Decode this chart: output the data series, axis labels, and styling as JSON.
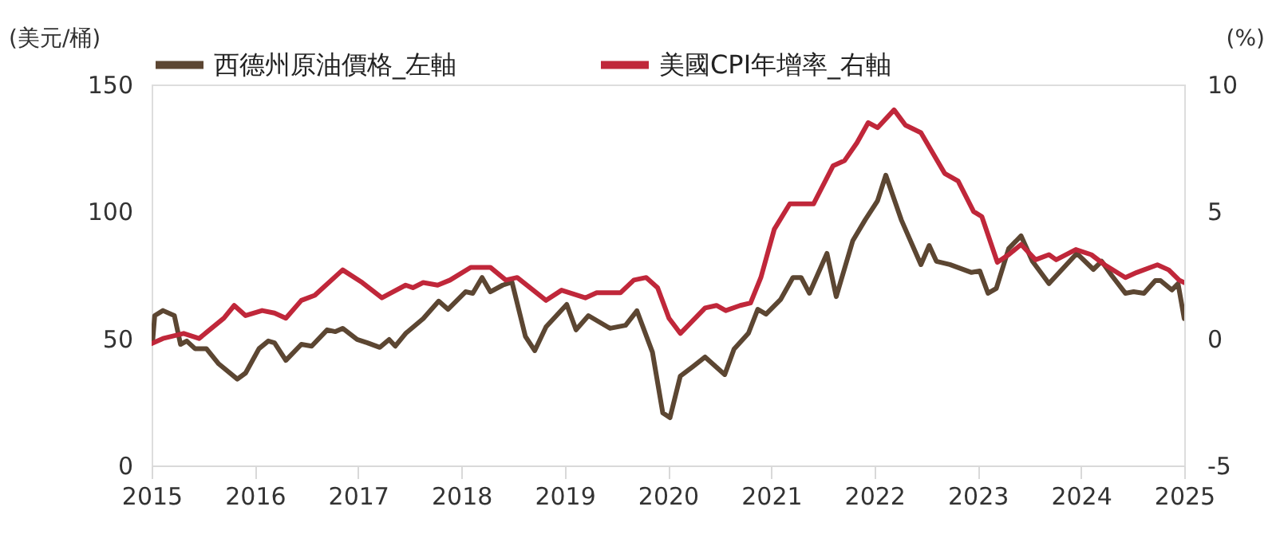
{
  "chart_data": {
    "type": "line",
    "ylabel": "(美元/桶)",
    "y2label": "(%)",
    "xlim": [
      2015,
      2025
    ],
    "xticks": [
      2015,
      2016,
      2017,
      2018,
      2019,
      2020,
      2021,
      2022,
      2023,
      2024,
      2025
    ],
    "ylim": [
      0,
      150
    ],
    "yticks": [
      0,
      50,
      100,
      150
    ],
    "y2lim": [
      -5,
      10
    ],
    "y2ticks": [
      -5,
      0,
      5,
      10
    ],
    "grid": false,
    "legend": "top",
    "marker": "none",
    "line_style": "solid",
    "series": [
      {
        "name": "西德州原油價格_左軸",
        "color": "#5c4632",
        "x": [
          2015.01,
          2015.03,
          2015.11,
          2015.22,
          2015.28,
          2015.34,
          2015.42,
          2015.53,
          2015.65,
          2015.83,
          2015.91,
          2016.04,
          2016.13,
          2016.19,
          2016.3,
          2016.45,
          2016.55,
          2016.7,
          2016.78,
          2016.85,
          2016.99,
          2017.09,
          2017.21,
          2017.3,
          2017.36,
          2017.46,
          2017.63,
          2017.78,
          2017.87,
          2018.04,
          2018.11,
          2018.2,
          2018.28,
          2018.4,
          2018.49,
          2018.62,
          2018.71,
          2018.82,
          2019.02,
          2019.11,
          2019.23,
          2019.44,
          2019.59,
          2019.7,
          2019.85,
          2019.95,
          2020.02,
          2020.12,
          2020.24,
          2020.36,
          2020.55,
          2020.64,
          2020.78,
          2020.87,
          2020.95,
          2021.09,
          2021.21,
          2021.29,
          2021.37,
          2021.54,
          2021.63,
          2021.79,
          2021.91,
          2022.03,
          2022.11,
          2022.26,
          2022.45,
          2022.53,
          2022.6,
          2022.73,
          2022.94,
          2023.02,
          2023.1,
          2023.18,
          2023.3,
          2023.42,
          2023.53,
          2023.69,
          2023.79,
          2023.96,
          2024.12,
          2024.2,
          2024.3,
          2024.43,
          2024.51,
          2024.61,
          2024.72,
          2024.77,
          2024.88,
          2024.94,
          2025.0
        ],
        "values": [
          49,
          59,
          61,
          59,
          47.7,
          49,
          46,
          46,
          40,
          34,
          36.4,
          46,
          49,
          48.3,
          41.4,
          47.7,
          47,
          53.4,
          52.7,
          54,
          49.6,
          48.3,
          46.5,
          49.6,
          47,
          52,
          57.8,
          64.7,
          61.5,
          68.4,
          67.8,
          74,
          68.4,
          71,
          72.2,
          50.8,
          45.2,
          54.6,
          63.4,
          53.4,
          59,
          54,
          55.2,
          60.9,
          44.6,
          20.7,
          18.8,
          35.2,
          38.9,
          42.7,
          35.8,
          45.8,
          52.1,
          61.5,
          59.6,
          65.3,
          74,
          74,
          67.8,
          83.5,
          66.5,
          88.5,
          96.7,
          104.2,
          114.3,
          96.7,
          79.1,
          86.6,
          80.4,
          79.1,
          76,
          76.6,
          67.8,
          69.7,
          85.4,
          90.4,
          80.4,
          71.6,
          76,
          83.5,
          77.2,
          80.4,
          74.7,
          67.8,
          68.4,
          67.8,
          72.8,
          72.8,
          69.1,
          71.6,
          57.8
        ]
      },
      {
        "name": "美國CPI年增率_右軸",
        "color": "#c0273a",
        "axis": "y2",
        "x": [
          2015.0,
          2015.11,
          2015.31,
          2015.46,
          2015.7,
          2015.8,
          2015.91,
          2016.07,
          2016.19,
          2016.3,
          2016.45,
          2016.58,
          2016.85,
          2017.04,
          2017.23,
          2017.32,
          2017.46,
          2017.53,
          2017.63,
          2017.77,
          2017.89,
          2018.09,
          2018.28,
          2018.43,
          2018.54,
          2018.82,
          2018.97,
          2019.2,
          2019.31,
          2019.54,
          2019.67,
          2019.79,
          2019.9,
          2020.01,
          2020.12,
          2020.36,
          2020.47,
          2020.56,
          2020.7,
          2020.8,
          2020.9,
          2021.03,
          2021.18,
          2021.41,
          2021.6,
          2021.71,
          2021.83,
          2021.94,
          2022.03,
          2022.19,
          2022.3,
          2022.45,
          2022.68,
          2022.81,
          2022.96,
          2023.04,
          2023.19,
          2023.3,
          2023.42,
          2023.56,
          2023.69,
          2023.76,
          2023.95,
          2024.1,
          2024.23,
          2024.43,
          2024.54,
          2024.74,
          2024.85,
          2024.95,
          2025.0
        ],
        "values": [
          -0.2,
          0,
          0.2,
          0,
          0.8,
          1.3,
          0.9,
          1.1,
          1.0,
          0.8,
          1.5,
          1.7,
          2.7,
          2.2,
          1.6,
          1.8,
          2.1,
          2.0,
          2.2,
          2.1,
          2.3,
          2.8,
          2.8,
          2.3,
          2.4,
          1.5,
          1.9,
          1.6,
          1.8,
          1.8,
          2.3,
          2.4,
          2.0,
          0.8,
          0.2,
          1.2,
          1.3,
          1.1,
          1.3,
          1.4,
          2.4,
          4.3,
          5.3,
          5.3,
          6.8,
          7.0,
          7.7,
          8.5,
          8.3,
          9.0,
          8.4,
          8.1,
          6.5,
          6.2,
          5.0,
          4.8,
          3.0,
          3.3,
          3.7,
          3.1,
          3.3,
          3.1,
          3.5,
          3.3,
          2.9,
          2.4,
          2.6,
          2.9,
          2.7,
          2.3,
          2.2
        ]
      }
    ]
  }
}
